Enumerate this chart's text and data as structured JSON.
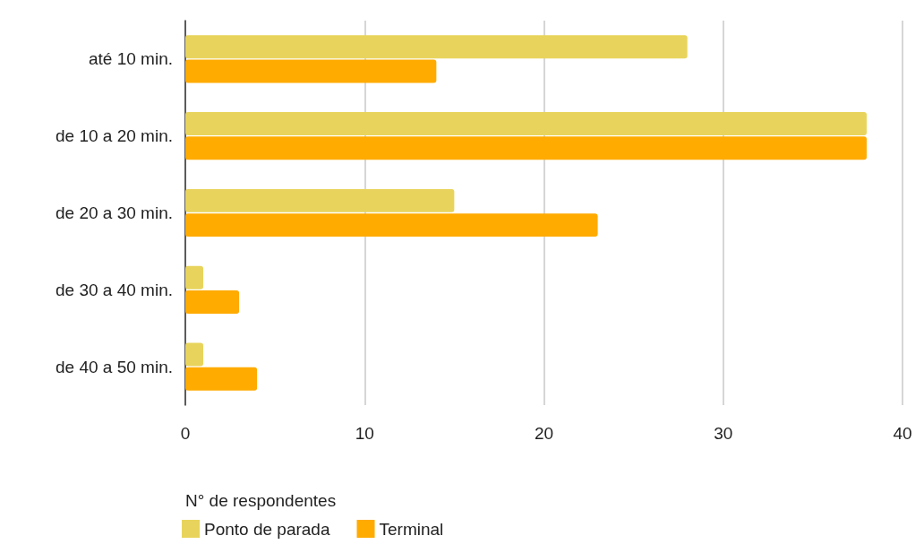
{
  "chart_data": {
    "type": "bar",
    "orientation": "horizontal",
    "xlabel": "N° de respondentes",
    "categories": [
      "até 10 min.",
      "de 10 a 20 min.",
      "de 20 a 30 min.",
      "de 30 a 40 min.",
      "de 40 a 50 min."
    ],
    "series": [
      {
        "name": "Ponto de parada",
        "color": "#e8d45c",
        "values": [
          28,
          38,
          15,
          1,
          1
        ]
      },
      {
        "name": "Terminal",
        "color": "#ffab00",
        "values": [
          14,
          38,
          23,
          3,
          4
        ]
      }
    ],
    "xlim": [
      0,
      40
    ],
    "xticks": [
      0,
      10,
      20,
      30,
      40
    ],
    "grid": "x",
    "legend": "bottom left"
  }
}
